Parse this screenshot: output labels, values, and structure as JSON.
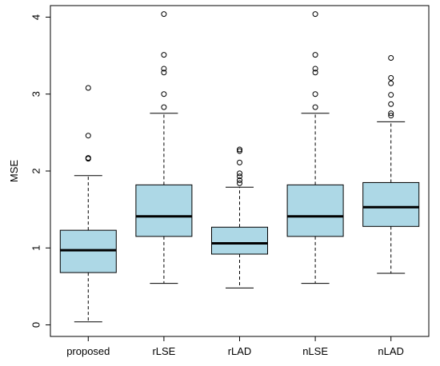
{
  "chart_data": {
    "type": "boxplot",
    "ylabel": "MSE",
    "ylim": [
      -0.15,
      4.15
    ],
    "yticks": [
      0,
      1,
      2,
      3,
      4
    ],
    "grid": false,
    "box_color": "#add8e6",
    "categories": [
      "proposed",
      "rLSE",
      "rLAD",
      "nLSE",
      "nLAD"
    ],
    "boxes": [
      {
        "name": "proposed",
        "whisker_low": 0.04,
        "q1": 0.68,
        "median": 0.97,
        "q3": 1.23,
        "whisker_high": 1.94,
        "outliers": [
          2.16,
          2.17,
          2.46,
          3.08
        ]
      },
      {
        "name": "rLSE",
        "whisker_low": 0.54,
        "q1": 1.15,
        "median": 1.41,
        "q3": 1.82,
        "whisker_high": 2.75,
        "outliers": [
          2.83,
          3.0,
          3.28,
          3.33,
          3.51,
          4.04
        ]
      },
      {
        "name": "rLAD",
        "whisker_low": 0.48,
        "q1": 0.92,
        "median": 1.06,
        "q3": 1.27,
        "whisker_high": 1.79,
        "outliers": [
          1.84,
          1.88,
          1.93,
          1.97,
          2.11,
          2.26,
          2.28
        ]
      },
      {
        "name": "nLSE",
        "whisker_low": 0.54,
        "q1": 1.15,
        "median": 1.41,
        "q3": 1.82,
        "whisker_high": 2.75,
        "outliers": [
          2.83,
          3.0,
          3.28,
          3.33,
          3.51,
          4.04
        ]
      },
      {
        "name": "nLAD",
        "whisker_low": 0.67,
        "q1": 1.28,
        "median": 1.53,
        "q3": 1.85,
        "whisker_high": 2.64,
        "outliers": [
          2.72,
          2.75,
          2.87,
          2.99,
          3.14,
          3.21,
          3.47
        ]
      }
    ]
  }
}
